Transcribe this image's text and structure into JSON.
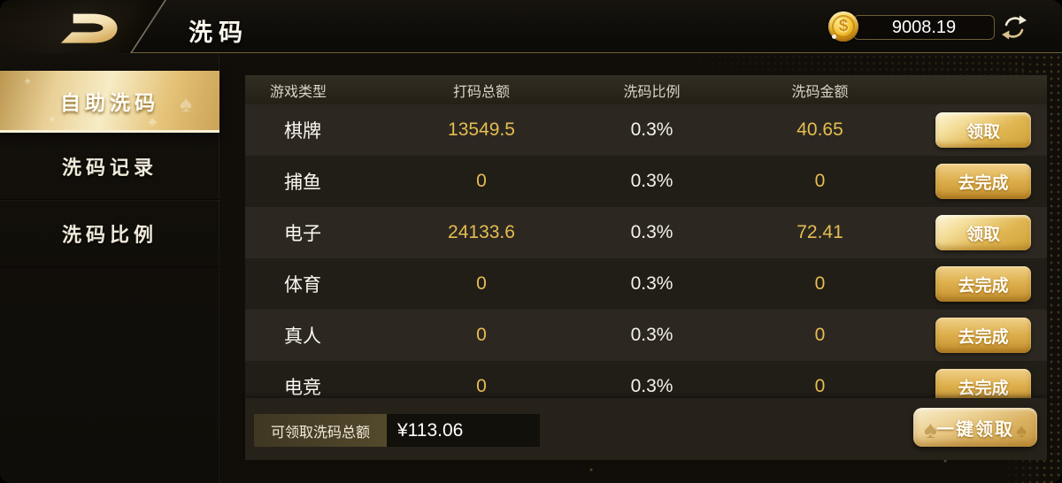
{
  "header": {
    "title": "洗码",
    "balance": "9008.19"
  },
  "sidebar": {
    "items": [
      {
        "label": "自助洗码",
        "active": true
      },
      {
        "label": "洗码记录",
        "active": false
      },
      {
        "label": "洗码比例",
        "active": false
      }
    ]
  },
  "table": {
    "columns": [
      "游戏类型",
      "打码总额",
      "洗码比例",
      "洗码金额"
    ],
    "rows": [
      {
        "game": "棋牌",
        "total": "13549.5",
        "ratio": "0.3%",
        "amount": "40.65",
        "action": "领取",
        "action_type": "claim"
      },
      {
        "game": "捕鱼",
        "total": "0",
        "ratio": "0.3%",
        "amount": "0",
        "action": "去完成",
        "action_type": "goto"
      },
      {
        "game": "电子",
        "total": "24133.6",
        "ratio": "0.3%",
        "amount": "72.41",
        "action": "领取",
        "action_type": "claim"
      },
      {
        "game": "体育",
        "total": "0",
        "ratio": "0.3%",
        "amount": "0",
        "action": "去完成",
        "action_type": "goto"
      },
      {
        "game": "真人",
        "total": "0",
        "ratio": "0.3%",
        "amount": "0",
        "action": "去完成",
        "action_type": "goto"
      },
      {
        "game": "电竞",
        "total": "0",
        "ratio": "0.3%",
        "amount": "0",
        "action": "去完成",
        "action_type": "goto"
      }
    ]
  },
  "footer": {
    "label": "可领取洗码总额",
    "value": "¥113.06",
    "claim_all_label": "一键领取"
  },
  "icons": {
    "coin": "gold-dollar-coin",
    "refresh": "refresh-arrows",
    "logo": "brand-d-swoosh",
    "decor": "spade"
  },
  "colors": {
    "gold_text": "#e6bc52",
    "gold_gradient_hi": "#f7ecc5",
    "gold_gradient_lo": "#cba356",
    "header_line": "#6f5e36",
    "row_odd": "#2c2821",
    "row_even": "#211e17"
  }
}
